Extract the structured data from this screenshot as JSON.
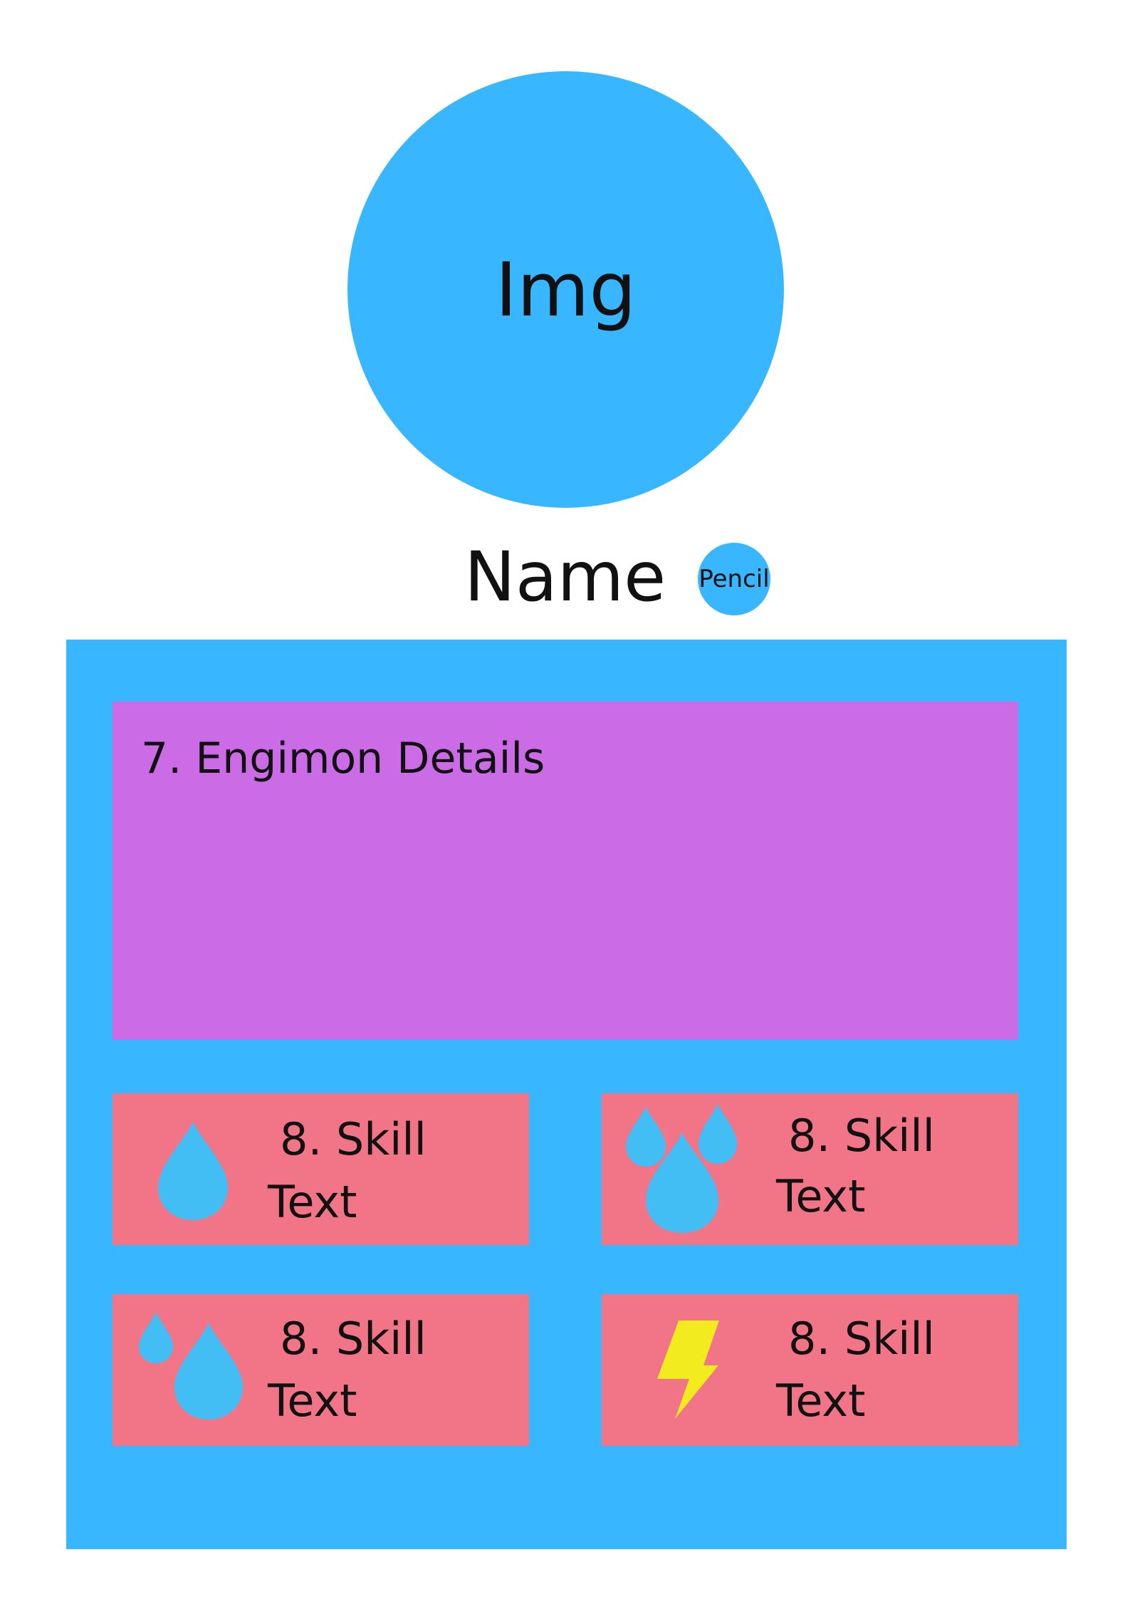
{
  "avatar": {
    "label": "Img"
  },
  "profile": {
    "name_label": "Name",
    "edit_button_label": "Pencil"
  },
  "details": {
    "title": "7. Engimon Details"
  },
  "skills": [
    {
      "name": "8. Skill",
      "text": "Text",
      "icon": "water-drop-icon"
    },
    {
      "name": "8. Skill",
      "text": "Text",
      "icon": "triple-water-drop-icon"
    },
    {
      "name": "8. Skill",
      "text": "Text",
      "icon": "double-water-drop-icon"
    },
    {
      "name": "8. Skill",
      "text": "Text",
      "icon": "lightning-bolt-icon"
    }
  ],
  "colors": {
    "accent_blue": "#38b6ff",
    "details_purple": "#cb6ce6",
    "skill_pink": "#f27487",
    "drop_blue": "#42bef5",
    "bolt_yellow": "#f2ec1e"
  }
}
